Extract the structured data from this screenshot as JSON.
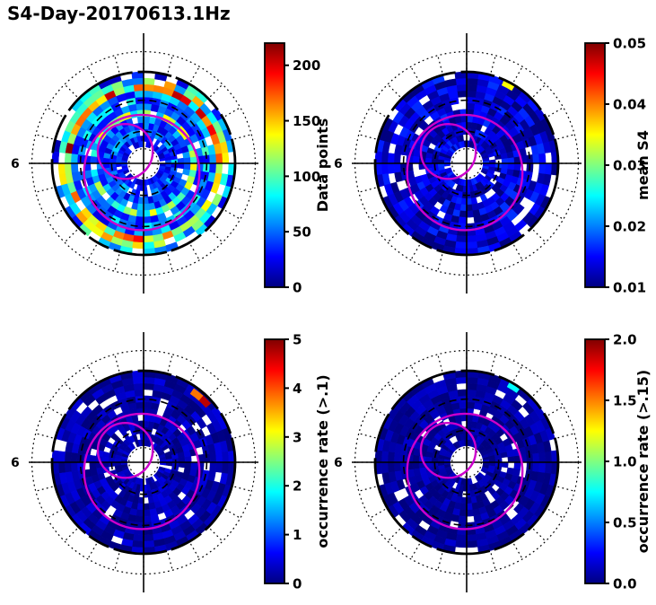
{
  "figure": {
    "title": "S4-Day-20170613.1Hz"
  },
  "chart_data": {
    "type": "heatmap",
    "subtype": "polar-skymap-grid-2x2",
    "title": "S4-Day-20170613.1Hz",
    "colormap": "jet",
    "background_color": "#ffffff",
    "grid_color": "#000000",
    "maglat_contour_color": "#cc00cc",
    "mlt_left_label": "6",
    "sectors": 48,
    "grid": {
      "solid_circle_r": 1.0,
      "dashed_circle_r": [
        0.35,
        0.69
      ],
      "inner_dotted_circle_r": 0.16,
      "outer_dotted_circle_r": 1.22,
      "spoke_step_deg": 15
    },
    "maglat_contours": [
      {
        "dx": -0.02,
        "dy": 0.1,
        "r": 0.63
      },
      {
        "dx": -0.2,
        "dy": -0.13,
        "r": 0.3
      }
    ],
    "panels": [
      {
        "name": "data-points",
        "position": "top-left",
        "colorbar_label": "Data points",
        "vmin": 0,
        "vmax": 220,
        "ticks": [
          0,
          50,
          100,
          150,
          200
        ],
        "tick_labels": [
          "0",
          "50",
          "100",
          "150",
          "200"
        ],
        "seed": 101,
        "rings": [
          {
            "r0": 0.93,
            "r1": 1.0,
            "base": 60,
            "spread": 50,
            "missing": 0.22
          },
          {
            "r0": 0.86,
            "r1": 0.93,
            "base": 100,
            "spread": 60,
            "missing": 0.08
          },
          {
            "r0": 0.79,
            "r1": 0.86,
            "base": 150,
            "spread": 70,
            "missing": 0.06
          },
          {
            "r0": 0.72,
            "r1": 0.79,
            "base": 50,
            "spread": 30,
            "missing": 0.06
          },
          {
            "r0": 0.65,
            "r1": 0.72,
            "base": 62,
            "spread": 38,
            "missing": 0.06
          },
          {
            "r0": 0.58,
            "r1": 0.65,
            "base": 45,
            "spread": 25,
            "missing": 0.06
          },
          {
            "r0": 0.51,
            "r1": 0.58,
            "base": 92,
            "spread": 52,
            "missing": 0.06
          },
          {
            "r0": 0.44,
            "r1": 0.51,
            "base": 46,
            "spread": 26,
            "missing": 0.08
          },
          {
            "r0": 0.37,
            "r1": 0.44,
            "base": 38,
            "spread": 22,
            "missing": 0.08
          },
          {
            "r0": 0.3,
            "r1": 0.37,
            "base": 46,
            "spread": 30,
            "missing": 0.1
          },
          {
            "r0": 0.24,
            "r1": 0.3,
            "base": 30,
            "spread": 18,
            "missing": 0.12
          },
          {
            "r0": 0.18,
            "r1": 0.24,
            "base": 25,
            "spread": 15,
            "missing": 0.15
          }
        ],
        "hotspots": []
      },
      {
        "name": "mean-s4",
        "position": "top-right",
        "colorbar_label": "mean S4",
        "vmin": 0.01,
        "vmax": 0.05,
        "ticks": [
          0.01,
          0.02,
          0.03,
          0.04,
          0.05
        ],
        "tick_labels": [
          "0.01",
          "0.02",
          "0.03",
          "0.04",
          "0.05"
        ],
        "seed": 202,
        "ring_span": [
          0.18,
          1.0
        ],
        "ring_count": 12,
        "ring_base": 0.013,
        "ring_spread": 0.004,
        "ring_missing": 0.09,
        "hotspots": [
          {
            "angle_deg": 62,
            "r": 0.97,
            "value": 0.035
          }
        ]
      },
      {
        "name": "occurrence-rate-gt-0p10",
        "position": "bottom-left",
        "colorbar_label": "occurrence rate (>.1)",
        "vmin": 0,
        "vmax": 5,
        "ticks": [
          0,
          1,
          2,
          3,
          4,
          5
        ],
        "tick_labels": [
          "0",
          "1",
          "2",
          "3",
          "4",
          "5"
        ],
        "seed": 303,
        "ring_span": [
          0.18,
          1.0
        ],
        "ring_count": 12,
        "ring_base": 0.2,
        "ring_spread": 0.3,
        "ring_missing": 0.09,
        "hotspots": [
          {
            "angle_deg": 45,
            "r": 0.94,
            "value": 4.7
          },
          {
            "angle_deg": 52,
            "r": 0.94,
            "value": 3.8
          }
        ]
      },
      {
        "name": "occurrence-rate-gt-0p15",
        "position": "bottom-right",
        "colorbar_label": "occurrence rate (>.15)",
        "vmin": 0,
        "vmax": 2,
        "ticks": [
          0,
          0.5,
          1,
          1.5,
          2
        ],
        "tick_labels": [
          "0.0",
          "0.5",
          "1.0",
          "1.5",
          "2.0"
        ],
        "seed": 404,
        "ring_span": [
          0.18,
          1.0
        ],
        "ring_count": 12,
        "ring_base": 0.06,
        "ring_spread": 0.1,
        "ring_missing": 0.09,
        "hotspots": [
          {
            "angle_deg": 58,
            "r": 0.97,
            "value": 0.75
          }
        ]
      }
    ]
  }
}
